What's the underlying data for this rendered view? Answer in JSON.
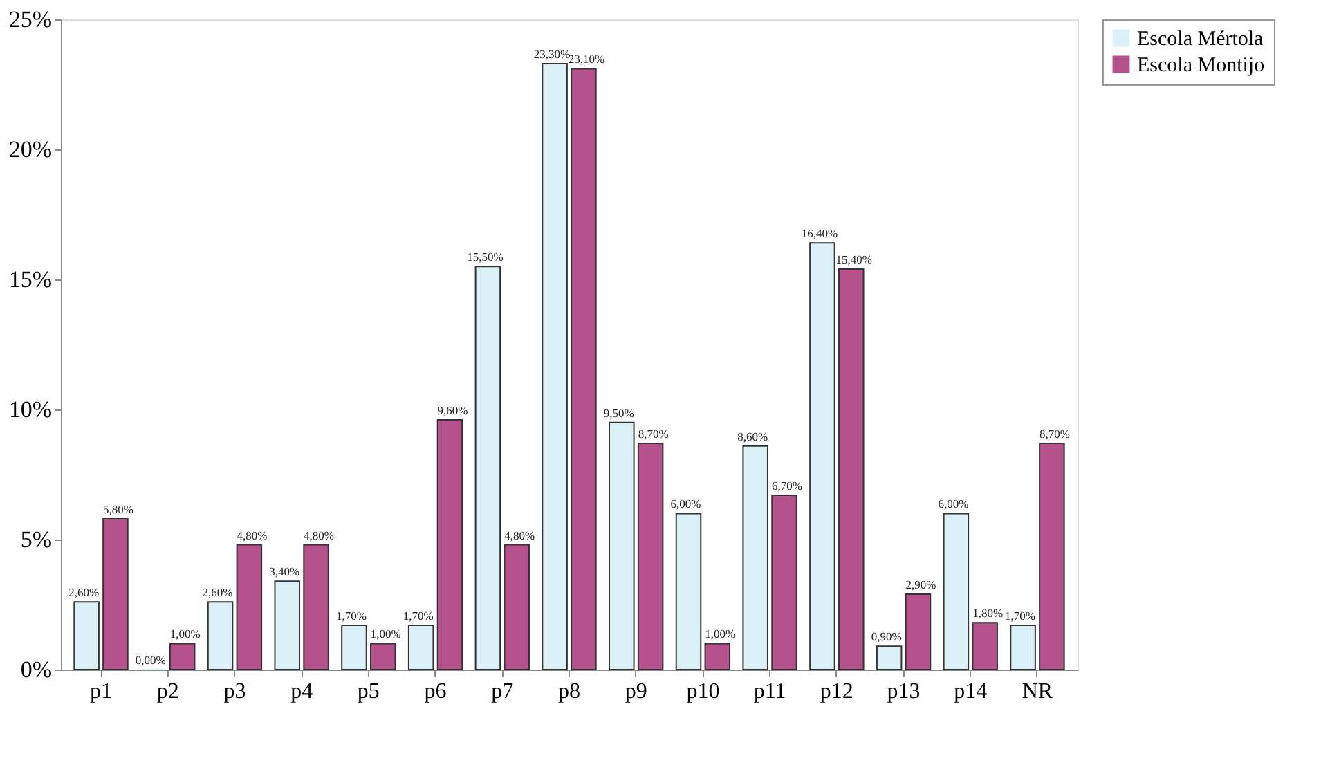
{
  "chart_data": {
    "type": "bar",
    "categories": [
      "p1",
      "p2",
      "p3",
      "p4",
      "p5",
      "p6",
      "p7",
      "p8",
      "p9",
      "p10",
      "p11",
      "p12",
      "p13",
      "p14",
      "NR"
    ],
    "series": [
      {
        "name": "Escola Mértola",
        "color": "#dcf1f7",
        "values": [
          2.6,
          0.0,
          2.6,
          3.4,
          1.7,
          1.7,
          15.5,
          23.3,
          9.5,
          6.0,
          8.6,
          16.4,
          0.9,
          6.0,
          1.7
        ],
        "value_labels": [
          "2,60%",
          "0,00%",
          "2,60%",
          "3,40%",
          "1,70%",
          "1,70%",
          "15,50%",
          "23,30%",
          "9,50%",
          "6,00%",
          "8,60%",
          "16,40%",
          "0,90%",
          "6,00%",
          "1,70%"
        ]
      },
      {
        "name": "Escola Montijo",
        "color": "#b5528e",
        "values": [
          5.8,
          1.0,
          4.8,
          4.8,
          1.0,
          9.6,
          4.8,
          23.1,
          8.7,
          1.0,
          6.7,
          15.4,
          2.9,
          1.8,
          8.7
        ],
        "value_labels": [
          "5,80%",
          "1,00%",
          "4,80%",
          "4,80%",
          "1,00%",
          "9,60%",
          "4,80%",
          "23,10%",
          "8,70%",
          "1,00%",
          "6,70%",
          "15,40%",
          "2,90%",
          "1,80%",
          "8,70%"
        ]
      }
    ],
    "ylim": [
      0,
      25
    ],
    "yticks": [
      {
        "value": 0,
        "label": "0%"
      },
      {
        "value": 5,
        "label": "5%"
      },
      {
        "value": 10,
        "label": "10%"
      },
      {
        "value": 15,
        "label": "15%"
      },
      {
        "value": 20,
        "label": "20%"
      },
      {
        "value": 25,
        "label": "25%"
      }
    ],
    "grid": false,
    "legend": "right"
  }
}
